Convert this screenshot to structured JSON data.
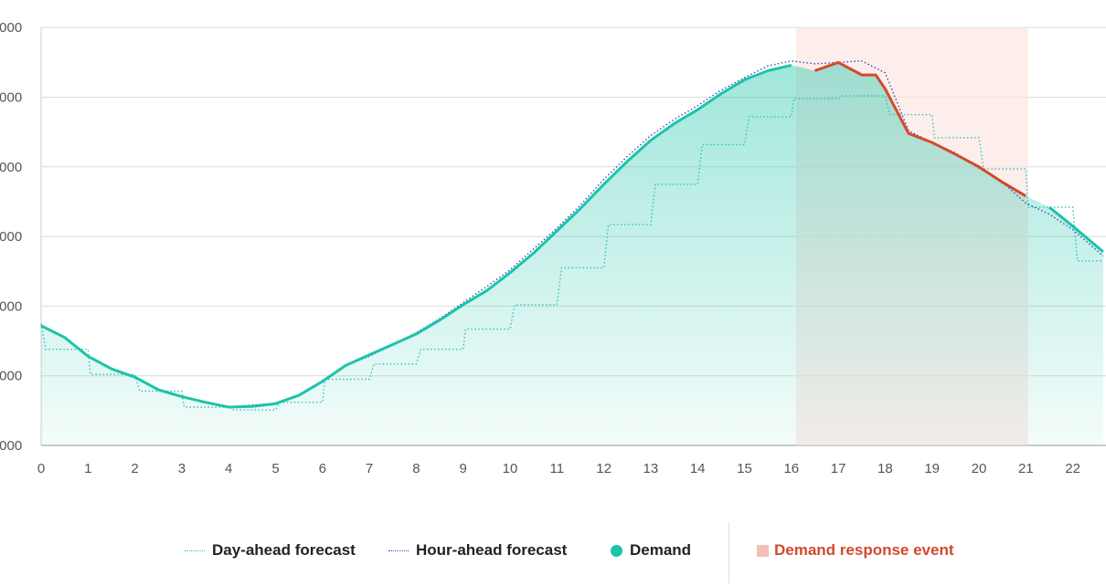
{
  "chart_data": {
    "type": "line",
    "x_ticks": [
      "0",
      "1",
      "2",
      "3",
      "4",
      "5",
      "6",
      "7",
      "8",
      "9",
      "10",
      "11",
      "12",
      "13",
      "14",
      "15",
      "16",
      "17",
      "18",
      "19",
      "20",
      "21",
      "22"
    ],
    "y_ticks": [
      ",000",
      ",000",
      ",000",
      ",000",
      ",000",
      ",000",
      ",000"
    ],
    "xlim": [
      0,
      22.65
    ],
    "grid": true,
    "legend_position": "bottom",
    "colors": {
      "day_ahead": "#2ec4b6",
      "hour_ahead": "#2f4fbf",
      "demand": "#1cc4a8",
      "demand_event_line": "#d24a2a",
      "event_band": "#fbe3df"
    },
    "demand_response_event": {
      "start": 16.1,
      "end": 21.05
    },
    "series": [
      {
        "name": "Day-ahead forecast",
        "style": "dotted-step",
        "values": [
          [
            0,
            1.75
          ],
          [
            0.1,
            1.38
          ],
          [
            1,
            1.38
          ],
          [
            1.05,
            1.02
          ],
          [
            2,
            1.02
          ],
          [
            2.1,
            0.78
          ],
          [
            3,
            0.78
          ],
          [
            3.05,
            0.55
          ],
          [
            4,
            0.55
          ],
          [
            4.1,
            0.51
          ],
          [
            5,
            0.51
          ],
          [
            5.1,
            0.62
          ],
          [
            6,
            0.62
          ],
          [
            6.05,
            0.95
          ],
          [
            7,
            0.95
          ],
          [
            7.1,
            1.17
          ],
          [
            8,
            1.17
          ],
          [
            8.1,
            1.38
          ],
          [
            9,
            1.38
          ],
          [
            9.05,
            1.67
          ],
          [
            10,
            1.67
          ],
          [
            10.1,
            2.02
          ],
          [
            11,
            2.02
          ],
          [
            11.1,
            2.55
          ],
          [
            12,
            2.55
          ],
          [
            12.1,
            3.17
          ],
          [
            13,
            3.17
          ],
          [
            13.1,
            3.75
          ],
          [
            14,
            3.75
          ],
          [
            14.1,
            4.32
          ],
          [
            15,
            4.32
          ],
          [
            15.1,
            4.72
          ],
          [
            16,
            4.72
          ],
          [
            16.05,
            4.98
          ],
          [
            17,
            4.98
          ],
          [
            17.1,
            5.02
          ],
          [
            18,
            5.02
          ],
          [
            18.1,
            4.75
          ],
          [
            19,
            4.75
          ],
          [
            19.05,
            4.42
          ],
          [
            20,
            4.42
          ],
          [
            20.1,
            3.97
          ],
          [
            21,
            3.97
          ],
          [
            21.05,
            3.42
          ],
          [
            22,
            3.42
          ],
          [
            22.1,
            2.65
          ],
          [
            22.65,
            2.65
          ]
        ]
      },
      {
        "name": "Hour-ahead forecast",
        "style": "dotted",
        "values": [
          [
            0,
            1.72
          ],
          [
            0.5,
            1.55
          ],
          [
            1,
            1.28
          ],
          [
            1.5,
            1.1
          ],
          [
            2,
            0.98
          ],
          [
            2.5,
            0.8
          ],
          [
            3,
            0.7
          ],
          [
            3.5,
            0.62
          ],
          [
            4,
            0.55
          ],
          [
            4.5,
            0.58
          ],
          [
            5,
            0.6
          ],
          [
            5.5,
            0.72
          ],
          [
            6,
            0.92
          ],
          [
            6.5,
            1.15
          ],
          [
            7,
            1.28
          ],
          [
            7.5,
            1.45
          ],
          [
            8,
            1.62
          ],
          [
            8.5,
            1.82
          ],
          [
            9,
            2.05
          ],
          [
            9.5,
            2.28
          ],
          [
            10,
            2.52
          ],
          [
            10.5,
            2.82
          ],
          [
            11,
            3.12
          ],
          [
            11.5,
            3.45
          ],
          [
            12,
            3.82
          ],
          [
            12.5,
            4.15
          ],
          [
            13,
            4.45
          ],
          [
            13.5,
            4.68
          ],
          [
            14,
            4.88
          ],
          [
            14.5,
            5.1
          ],
          [
            15,
            5.28
          ],
          [
            15.5,
            5.45
          ],
          [
            16,
            5.52
          ],
          [
            16.5,
            5.48
          ],
          [
            17,
            5.5
          ],
          [
            17.5,
            5.52
          ],
          [
            18,
            5.35
          ],
          [
            18.5,
            4.52
          ],
          [
            19,
            4.35
          ],
          [
            19.5,
            4.2
          ],
          [
            20,
            3.98
          ],
          [
            20.5,
            3.78
          ],
          [
            21,
            3.48
          ],
          [
            21.5,
            3.32
          ],
          [
            22,
            3.1
          ],
          [
            22.65,
            2.72
          ]
        ]
      },
      {
        "name": "Demand",
        "style": "solid",
        "values": [
          [
            0,
            1.72
          ],
          [
            0.5,
            1.55
          ],
          [
            1,
            1.28
          ],
          [
            1.5,
            1.1
          ],
          [
            2,
            0.98
          ],
          [
            2.5,
            0.8
          ],
          [
            3,
            0.7
          ],
          [
            3.5,
            0.62
          ],
          [
            4,
            0.55
          ],
          [
            4.5,
            0.56
          ],
          [
            5,
            0.6
          ],
          [
            5.5,
            0.72
          ],
          [
            6,
            0.92
          ],
          [
            6.5,
            1.15
          ],
          [
            7,
            1.3
          ],
          [
            7.5,
            1.45
          ],
          [
            8,
            1.6
          ],
          [
            8.5,
            1.8
          ],
          [
            9,
            2.02
          ],
          [
            9.5,
            2.22
          ],
          [
            10,
            2.48
          ],
          [
            10.5,
            2.76
          ],
          [
            11,
            3.08
          ],
          [
            11.5,
            3.4
          ],
          [
            12,
            3.75
          ],
          [
            12.5,
            4.08
          ],
          [
            13,
            4.38
          ],
          [
            13.5,
            4.62
          ],
          [
            14,
            4.82
          ],
          [
            14.5,
            5.05
          ],
          [
            15,
            5.25
          ],
          [
            15.5,
            5.38
          ],
          [
            16,
            5.46
          ],
          [
            16.5,
            5.38
          ],
          [
            17,
            5.5
          ],
          [
            17.5,
            5.32
          ],
          [
            17.8,
            5.32
          ],
          [
            18,
            5.12
          ],
          [
            18.5,
            4.48
          ],
          [
            19,
            4.35
          ],
          [
            19.5,
            4.18
          ],
          [
            20,
            4.0
          ],
          [
            20.5,
            3.78
          ],
          [
            21,
            3.58
          ],
          [
            21.5,
            3.42
          ],
          [
            22,
            3.15
          ],
          [
            22.65,
            2.78
          ]
        ]
      }
    ]
  },
  "legend": {
    "day_ahead": "Day-ahead forecast",
    "hour_ahead": "Hour-ahead forecast",
    "demand": "Demand",
    "event": "Demand response event"
  }
}
